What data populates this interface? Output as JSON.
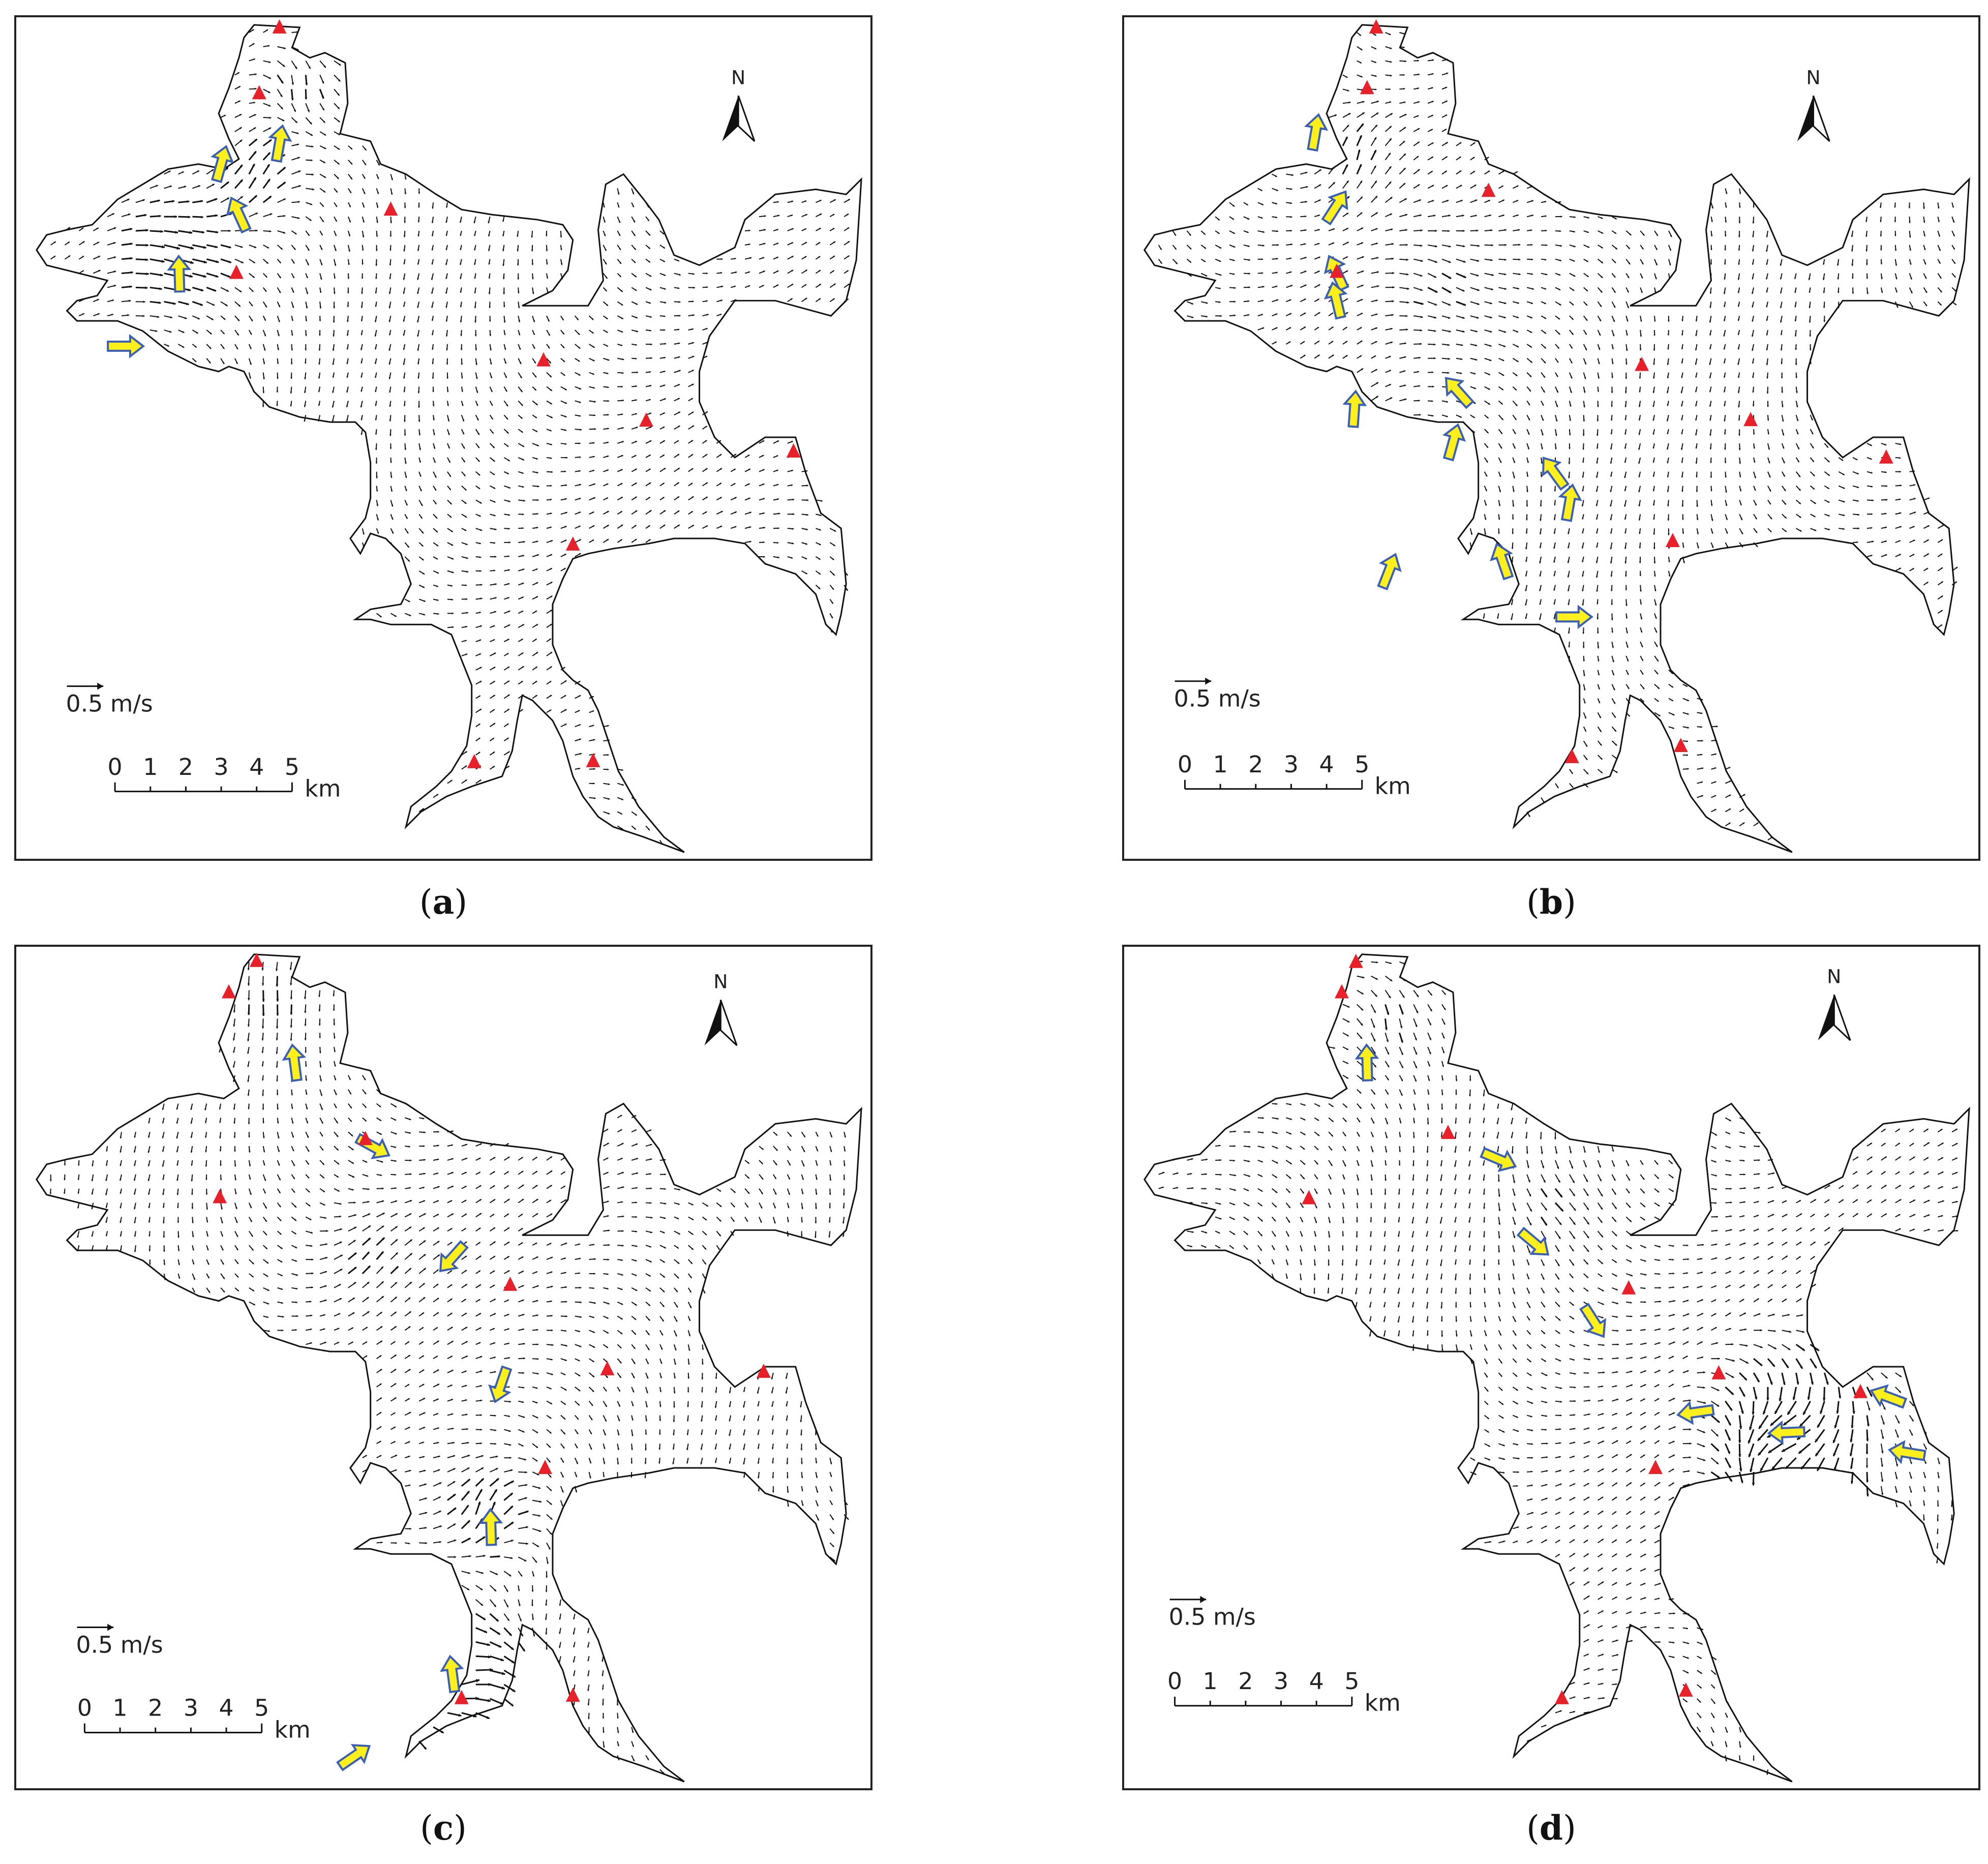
{
  "panels": [
    {
      "id": "a",
      "caption_open": "(",
      "caption_letter": "a",
      "caption_close": ")",
      "north_label": "N",
      "velocity_scale_label": "0.5 m/s",
      "scale_ticks": [
        "0",
        "1",
        "2",
        "3",
        "4",
        "5"
      ],
      "scale_unit": "km",
      "station_count": 10,
      "inflow_arrow_count": 5
    },
    {
      "id": "b",
      "caption_open": "(",
      "caption_letter": "b",
      "caption_close": ")",
      "north_label": "N",
      "velocity_scale_label": "0.5 m/s",
      "scale_ticks": [
        "0",
        "1",
        "2",
        "3",
        "4",
        "5"
      ],
      "scale_unit": "km",
      "station_count": 10,
      "inflow_arrow_count": 12
    },
    {
      "id": "c",
      "caption_open": "(",
      "caption_letter": "c",
      "caption_close": ")",
      "north_label": "N",
      "velocity_scale_label": "0.5 m/s",
      "scale_ticks": [
        "0",
        "1",
        "2",
        "3",
        "4",
        "5"
      ],
      "scale_unit": "km",
      "station_count": 10,
      "inflow_arrow_count": 7
    },
    {
      "id": "d",
      "caption_open": "(",
      "caption_letter": "d",
      "caption_close": ")",
      "north_label": "N",
      "velocity_scale_label": "0.5 m/s",
      "scale_ticks": [
        "0",
        "1",
        "2",
        "3",
        "4",
        "5"
      ],
      "scale_unit": "km",
      "station_count": 10,
      "inflow_arrow_count": 8
    }
  ],
  "colors": {
    "station_marker": "#e8202a",
    "inflow_arrow_fill": "#ffef1a",
    "inflow_arrow_stroke": "#3a5fb8",
    "vector": "#111111",
    "shoreline": "#111111"
  }
}
